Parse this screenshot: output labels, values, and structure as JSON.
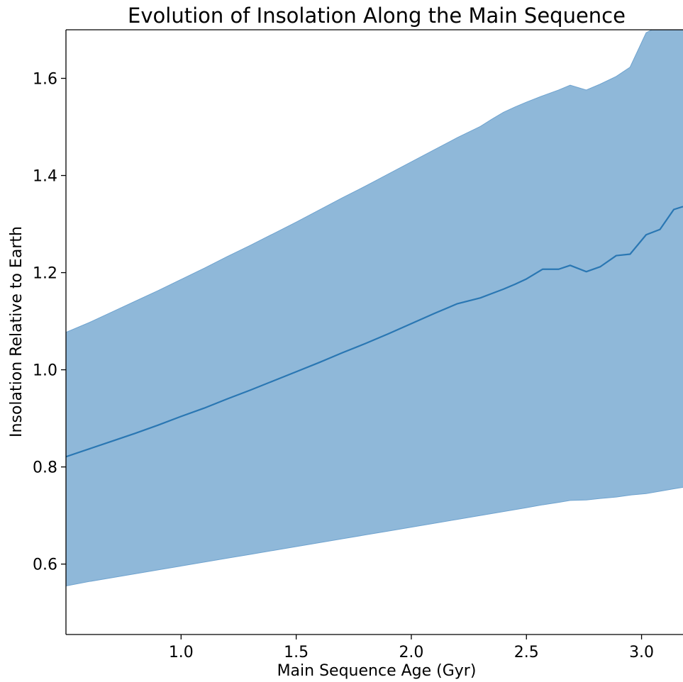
{
  "chart_data": {
    "type": "area",
    "title": "Evolution of Insolation Along the Main Sequence",
    "xlabel": "Main Sequence Age (Gyr)",
    "ylabel": "Insolation Relative to Earth",
    "xlim": [
      0.5,
      3.18
    ],
    "ylim": [
      0.455,
      1.7
    ],
    "xticks": [
      1.0,
      1.5,
      2.0,
      2.5,
      3.0
    ],
    "xtick_labels": [
      "1.0",
      "1.5",
      "2.0",
      "2.5",
      "3.0"
    ],
    "yticks": [
      0.6,
      0.8,
      1.0,
      1.2,
      1.4,
      1.6
    ],
    "ytick_labels": [
      "0.6",
      "0.8",
      "1.0",
      "1.2",
      "1.4",
      "1.6"
    ],
    "grid": false,
    "colors": {
      "line": "#2a77b3",
      "band": "#8fb8d9",
      "band_edge": "#6fa3cf"
    },
    "x": [
      0.5,
      0.6,
      0.7,
      0.8,
      0.9,
      1.0,
      1.1,
      1.2,
      1.3,
      1.4,
      1.5,
      1.6,
      1.7,
      1.8,
      1.9,
      2.0,
      2.1,
      2.2,
      2.3,
      2.35,
      2.4,
      2.45,
      2.5,
      2.57,
      2.64,
      2.69,
      2.76,
      2.82,
      2.89,
      2.95,
      3.02,
      3.08,
      3.14,
      3.18
    ],
    "series": [
      {
        "role": "mean",
        "values": [
          0.821,
          0.837,
          0.853,
          0.869,
          0.886,
          0.904,
          0.921,
          0.94,
          0.958,
          0.977,
          0.996,
          1.015,
          1.035,
          1.054,
          1.074,
          1.095,
          1.116,
          1.136,
          1.148,
          1.157,
          1.166,
          1.176,
          1.187,
          1.207,
          1.207,
          1.215,
          1.202,
          1.212,
          1.235,
          1.238,
          1.278,
          1.289,
          1.33,
          1.336
        ]
      },
      {
        "role": "upper",
        "values": [
          1.077,
          1.097,
          1.119,
          1.141,
          1.163,
          1.186,
          1.209,
          1.233,
          1.256,
          1.28,
          1.304,
          1.329,
          1.354,
          1.378,
          1.403,
          1.428,
          1.453,
          1.478,
          1.501,
          1.516,
          1.53,
          1.541,
          1.551,
          1.564,
          1.576,
          1.586,
          1.576,
          1.588,
          1.604,
          1.623,
          1.694,
          1.708,
          1.72,
          1.716
        ]
      },
      {
        "role": "lower",
        "values": [
          0.555,
          0.564,
          0.572,
          0.58,
          0.588,
          0.596,
          0.604,
          0.612,
          0.62,
          0.628,
          0.636,
          0.644,
          0.652,
          0.66,
          0.668,
          0.676,
          0.684,
          0.692,
          0.7,
          0.704,
          0.708,
          0.712,
          0.716,
          0.722,
          0.727,
          0.731,
          0.732,
          0.735,
          0.738,
          0.742,
          0.745,
          0.75,
          0.755,
          0.758
        ]
      }
    ]
  }
}
